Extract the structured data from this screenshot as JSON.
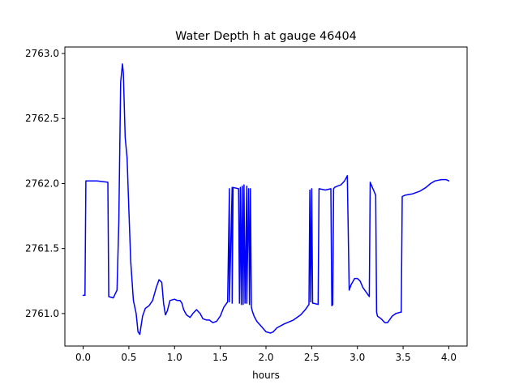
{
  "chart_data": {
    "type": "line",
    "title": "Water Depth h at gauge 46404",
    "xlabel": "hours",
    "ylabel": "",
    "xlim": [
      -0.2,
      4.2
    ],
    "ylim": [
      2760.75,
      2763.05
    ],
    "xticks": [
      0.0,
      0.5,
      1.0,
      1.5,
      2.0,
      2.5,
      3.0,
      3.5,
      4.0
    ],
    "xtick_labels": [
      "0.0",
      "0.5",
      "1.0",
      "1.5",
      "2.0",
      "2.5",
      "3.0",
      "3.5",
      "4.0"
    ],
    "yticks": [
      2761.0,
      2761.5,
      2762.0,
      2762.5,
      2763.0
    ],
    "ytick_labels": [
      "2761.0",
      "2761.5",
      "2762.0",
      "2762.5",
      "2763.0"
    ],
    "grid": false,
    "colors": {
      "line": "#0000ff",
      "axes": "#000000",
      "background": "#ffffff"
    },
    "series": [
      {
        "x": [
          0.0,
          0.02,
          0.03,
          0.15,
          0.27,
          0.28,
          0.33,
          0.37,
          0.39,
          0.41,
          0.43,
          0.44,
          0.46,
          0.48,
          0.5,
          0.52,
          0.55,
          0.58,
          0.6,
          0.62,
          0.65,
          0.68,
          0.72,
          0.76,
          0.8,
          0.83,
          0.86,
          0.88,
          0.9,
          0.92,
          0.95,
          1.0,
          1.03,
          1.06,
          1.08,
          1.1,
          1.13,
          1.17,
          1.2,
          1.24,
          1.28,
          1.31,
          1.35,
          1.38,
          1.42,
          1.46,
          1.5,
          1.54,
          1.58,
          1.6,
          1.6,
          1.63,
          1.63,
          1.64,
          1.64,
          1.7,
          1.71,
          1.72,
          1.73,
          1.74,
          1.75,
          1.76,
          1.77,
          1.79,
          1.79,
          1.81,
          1.82,
          1.83,
          1.84,
          1.85,
          1.85,
          1.87,
          1.9,
          1.95,
          2.0,
          2.05,
          2.08,
          2.12,
          2.2,
          2.3,
          2.38,
          2.43,
          2.47,
          2.48,
          2.49,
          2.5,
          2.51,
          2.52,
          2.57,
          2.58,
          2.65,
          2.71,
          2.72,
          2.73,
          2.74,
          2.75,
          2.78,
          2.82,
          2.86,
          2.89,
          2.91,
          2.93,
          2.97,
          3.0,
          3.03,
          3.06,
          3.1,
          3.13,
          3.14,
          3.2,
          3.21,
          3.22,
          3.26,
          3.3,
          3.33,
          3.35,
          3.38,
          3.42,
          3.47,
          3.48,
          3.49,
          3.52,
          3.6,
          3.68,
          3.75,
          3.8,
          3.85,
          3.92,
          3.97,
          4.0
        ],
        "y": [
          2761.14,
          2761.14,
          2762.02,
          2762.02,
          2762.01,
          2761.13,
          2761.12,
          2761.18,
          2761.7,
          2762.78,
          2762.92,
          2762.85,
          2762.35,
          2762.2,
          2761.8,
          2761.4,
          2761.1,
          2761.0,
          2760.86,
          2760.84,
          2760.98,
          2761.04,
          2761.06,
          2761.1,
          2761.2,
          2761.26,
          2761.24,
          2761.08,
          2760.99,
          2761.02,
          2761.1,
          2761.11,
          2761.1,
          2761.1,
          2761.08,
          2761.03,
          2760.99,
          2760.97,
          2761.0,
          2761.03,
          2761.0,
          2760.96,
          2760.95,
          2760.95,
          2760.93,
          2760.94,
          2760.98,
          2761.05,
          2761.09,
          2761.96,
          2761.09,
          2761.97,
          2761.08,
          2761.97,
          2761.97,
          2761.96,
          2761.08,
          2761.97,
          2761.07,
          2761.98,
          2761.07,
          2761.99,
          2761.08,
          2761.98,
          2761.08,
          2761.96,
          2761.07,
          2761.96,
          2761.05,
          2761.02,
          2761.02,
          2760.98,
          2760.94,
          2760.9,
          2760.86,
          2760.85,
          2760.86,
          2760.89,
          2760.92,
          2760.95,
          2760.99,
          2761.03,
          2761.07,
          2761.95,
          2761.09,
          2761.96,
          2761.08,
          2761.08,
          2761.07,
          2761.96,
          2761.95,
          2761.96,
          2761.06,
          2761.07,
          2761.96,
          2761.97,
          2761.98,
          2761.99,
          2762.02,
          2762.06,
          2761.18,
          2761.22,
          2761.27,
          2761.27,
          2761.25,
          2761.2,
          2761.16,
          2761.13,
          2762.01,
          2761.91,
          2761.01,
          2760.98,
          2760.96,
          2760.93,
          2760.93,
          2760.95,
          2760.98,
          2761.0,
          2761.01,
          2761.01,
          2761.9,
          2761.91,
          2761.92,
          2761.94,
          2761.97,
          2762.0,
          2762.02,
          2762.03,
          2762.03,
          2762.02
        ]
      }
    ]
  }
}
